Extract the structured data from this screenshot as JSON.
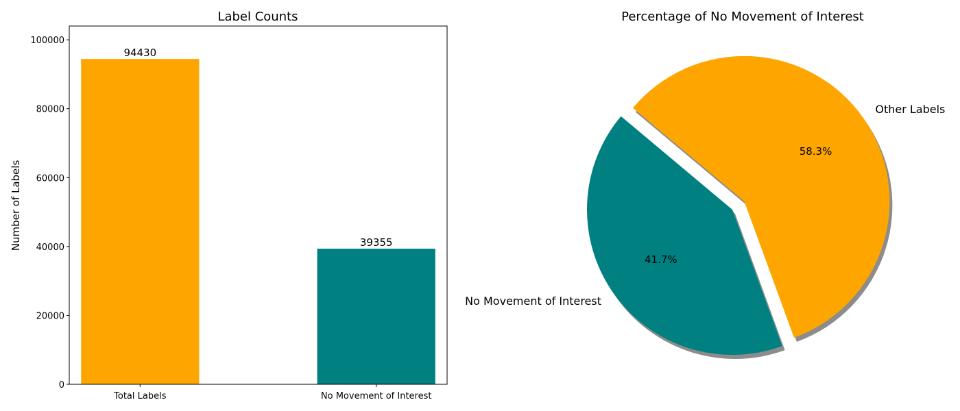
{
  "chart_data": [
    {
      "type": "bar",
      "title": "Label Counts",
      "xlabel": "",
      "ylabel": "Number of Labels",
      "categories": [
        "Total Labels",
        "No Movement of Interest"
      ],
      "values": [
        94430,
        39355
      ],
      "value_labels": [
        "94430",
        "39355"
      ],
      "colors": [
        "#FFA500",
        "#008080"
      ],
      "ylim": [
        0,
        104000
      ],
      "yticks": [
        0,
        20000,
        40000,
        60000,
        80000,
        100000
      ],
      "ytick_labels": [
        "0",
        "20000",
        "40000",
        "60000",
        "80000",
        "100000"
      ],
      "grid": false,
      "legend": false
    },
    {
      "type": "pie",
      "title": "Percentage of No Movement of Interest",
      "labels": [
        "No Movement of Interest",
        "Other Labels"
      ],
      "values": [
        39355,
        55075
      ],
      "percent_labels": [
        "41.7%",
        "58.3%"
      ],
      "colors": [
        "#008080",
        "#FFA500"
      ],
      "explode": [
        0,
        0.1
      ],
      "shadow": true,
      "start_angle": 140,
      "legend": false
    }
  ]
}
